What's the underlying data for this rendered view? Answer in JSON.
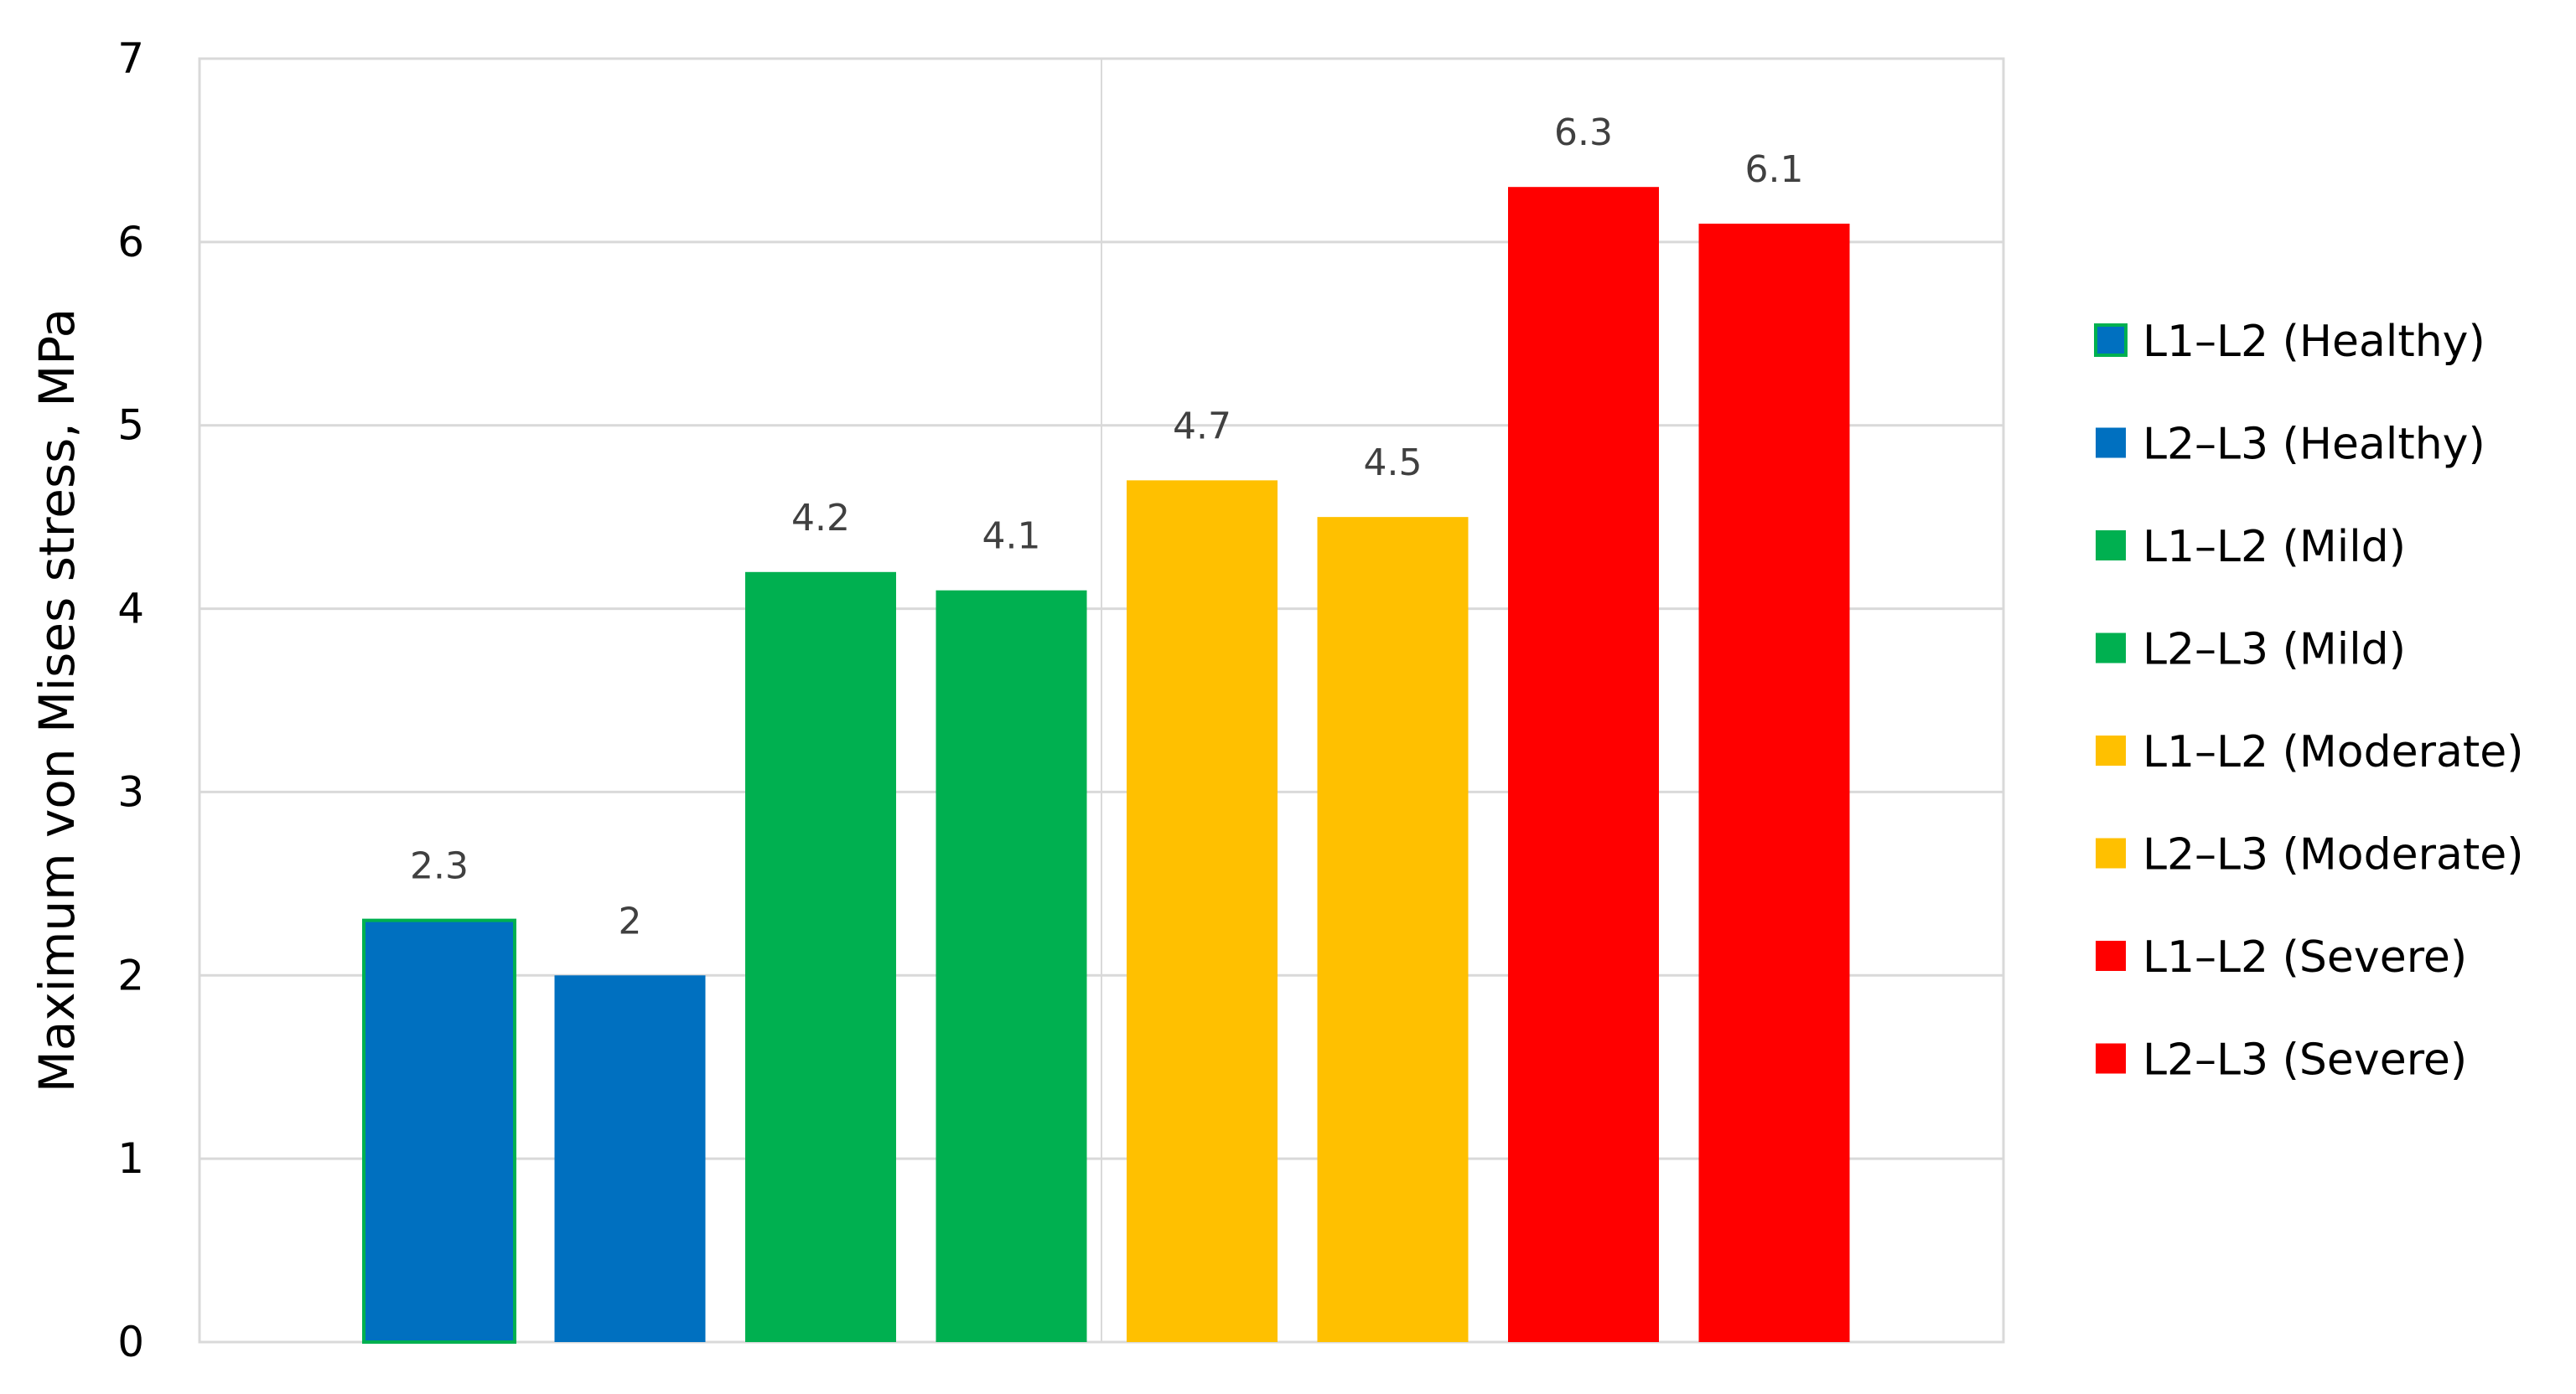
{
  "chart_data": {
    "type": "bar",
    "title": "",
    "xlabel": "",
    "ylabel": "Maximum von Mises stress, MPa",
    "ylim": [
      0,
      7
    ],
    "yticks": [
      0,
      1,
      2,
      3,
      4,
      5,
      6,
      7
    ],
    "grid": true,
    "legend_position": "right",
    "categories": [
      "L1–L2 (Healthy)",
      "L2–L3 (Healthy)",
      "L1–L2 (Mild)",
      "L2–L3 (Mild)",
      "L1–L2 (Moderate)",
      "L2–L3 (Moderate)",
      "L1–L2 (Severe)",
      "L2–L3 (Severe)"
    ],
    "values": [
      2.3,
      2,
      4.2,
      4.1,
      4.7,
      4.5,
      6.3,
      6.1
    ],
    "data_labels": [
      "2.3",
      "2",
      "4.2",
      "4.1",
      "4.7",
      "4.5",
      "6.3",
      "6.1"
    ],
    "colors": [
      "#0070C0",
      "#0070C0",
      "#00B050",
      "#00B050",
      "#FFC000",
      "#FFC000",
      "#FF0000",
      "#FF0000"
    ],
    "outline_colors": [
      "#00B050",
      "none",
      "none",
      "none",
      "none",
      "none",
      "none",
      "none"
    ]
  }
}
